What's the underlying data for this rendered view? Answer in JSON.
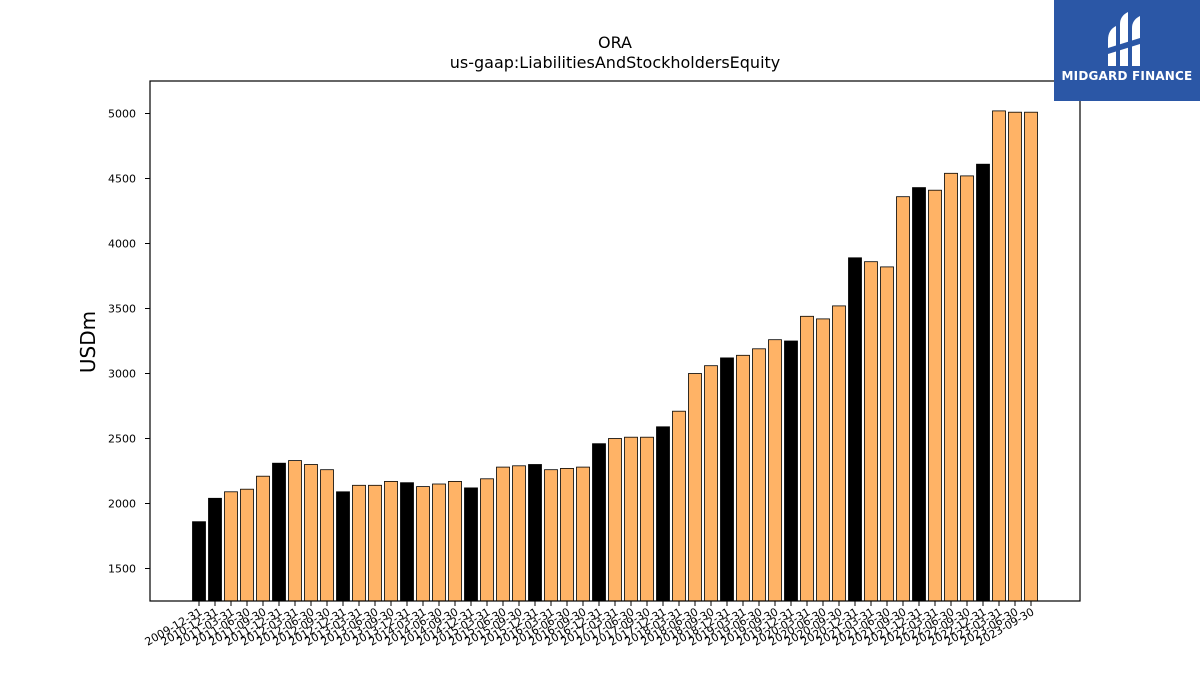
{
  "brand": {
    "name": "MIDGARD FINANCE",
    "bg_color": "#2b57a6"
  },
  "colors": {
    "highlight": "#000000",
    "normal": "#ffb366",
    "edge": "#000000"
  },
  "chart_data": {
    "type": "bar",
    "title": "ORA",
    "subtitle": "us-gaap:LiabilitiesAndStockholdersEquity",
    "xlabel": "",
    "ylabel": "USDm",
    "ylim": [
      1250,
      5250
    ],
    "yticks": [
      1500,
      2000,
      2500,
      3000,
      3500,
      4000,
      4500,
      5000
    ],
    "grid": false,
    "categories": [
      "2009-12-31",
      "2010-12-31",
      "2011-03-31",
      "2011-06-30",
      "2011-09-30",
      "2011-12-31",
      "2012-03-31",
      "2012-06-30",
      "2012-09-30",
      "2012-12-31",
      "2013-03-31",
      "2013-06-30",
      "2013-09-30",
      "2013-12-31",
      "2014-03-31",
      "2014-06-30",
      "2014-09-30",
      "2014-12-31",
      "2015-03-31",
      "2015-06-30",
      "2015-09-30",
      "2015-12-31",
      "2016-03-31",
      "2016-06-30",
      "2016-09-30",
      "2016-12-31",
      "2017-03-31",
      "2017-06-30",
      "2017-09-30",
      "2017-12-31",
      "2018-03-31",
      "2018-06-30",
      "2018-09-30",
      "2018-12-31",
      "2019-03-31",
      "2019-06-30",
      "2019-09-30",
      "2019-12-31",
      "2020-03-31",
      "2020-06-30",
      "2020-09-30",
      "2020-12-31",
      "2021-03-31",
      "2021-06-30",
      "2021-09-30",
      "2021-12-31",
      "2022-03-31",
      "2022-06-30",
      "2022-09-30",
      "2022-12-31",
      "2023-03-31",
      "2023-06-30",
      "2023-09-30"
    ],
    "values": [
      1860,
      2040,
      2090,
      2110,
      2210,
      2310,
      2330,
      2300,
      2260,
      2090,
      2140,
      2140,
      2170,
      2160,
      2130,
      2150,
      2170,
      2120,
      2190,
      2280,
      2290,
      2300,
      2260,
      2270,
      2280,
      2460,
      2500,
      2510,
      2510,
      2590,
      2710,
      3000,
      3060,
      3120,
      3140,
      3190,
      3260,
      3250,
      3440,
      3420,
      3520,
      3890,
      3860,
      3820,
      4360,
      4430,
      4410,
      4540,
      4520,
      4610,
      5020,
      5010,
      5010
    ],
    "highlight": [
      true,
      true,
      false,
      false,
      false,
      true,
      false,
      false,
      false,
      true,
      false,
      false,
      false,
      true,
      false,
      false,
      false,
      true,
      false,
      false,
      false,
      true,
      false,
      false,
      false,
      true,
      false,
      false,
      false,
      true,
      false,
      false,
      false,
      true,
      false,
      false,
      false,
      true,
      false,
      false,
      false,
      true,
      false,
      false,
      false,
      true,
      false,
      false,
      false,
      true,
      false,
      false,
      false
    ]
  }
}
